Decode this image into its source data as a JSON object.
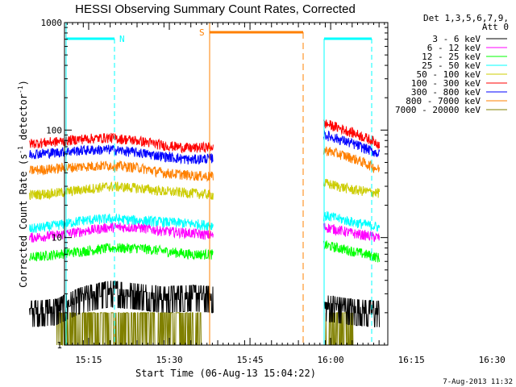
{
  "chart_data": {
    "type": "line",
    "title": "HESSI Observing Summary Count Rates, Corrected",
    "xlabel": "Start Time (06-Aug-13 15:04:22)",
    "ylabel": "Corrected Count Rate (s",
    "ylabel_sup1": "-1",
    "ylabel_mid": " detector",
    "ylabel_sup2": "-1",
    "ylabel_end": ")",
    "yscale": "log",
    "ylim": [
      1,
      1000
    ],
    "y_ticks": [
      {
        "value": 1,
        "label": "1"
      },
      {
        "value": 10,
        "label": "10"
      },
      {
        "value": 100,
        "label": "100"
      },
      {
        "value": 1000,
        "label": "1000"
      }
    ],
    "x_range_min": [
      0,
      65
    ],
    "x_ticks": [
      {
        "min": 11,
        "label": "15:15"
      },
      {
        "min": 26,
        "label": "15:30"
      },
      {
        "min": 41,
        "label": "15:45"
      },
      {
        "min": 56,
        "label": "16:00"
      },
      {
        "min": 71,
        "label": "16:15"
      },
      {
        "min": 86,
        "label": "16:30"
      }
    ],
    "legend": {
      "header_line1": "Det 1,3,5,6,7,9,",
      "header_line2": "Att 0",
      "placement": "right"
    },
    "series": [
      {
        "name": "3 - 6 keV",
        "color": "#000000",
        "values": [
          [
            0,
            2.2
          ],
          [
            5,
            2.3
          ],
          [
            10,
            3.0
          ],
          [
            15,
            3.4
          ],
          [
            20,
            3.2
          ],
          [
            25,
            3.0
          ],
          [
            30,
            3.1
          ],
          [
            34,
            3.0
          ],
          [
            55,
            2.5
          ],
          [
            60,
            2.3
          ],
          [
            65,
            2.2
          ]
        ]
      },
      {
        "name": "6 - 12 keV",
        "color": "#ff00ff",
        "values": [
          [
            0,
            10
          ],
          [
            5,
            10.5
          ],
          [
            10,
            11.5
          ],
          [
            15,
            12.5
          ],
          [
            20,
            12.5
          ],
          [
            25,
            11.5
          ],
          [
            30,
            11
          ],
          [
            34,
            10.5
          ],
          [
            55,
            12.5
          ],
          [
            60,
            11
          ],
          [
            65,
            10
          ]
        ]
      },
      {
        "name": "12 - 25 keV",
        "color": "#00ff00",
        "values": [
          [
            0,
            6.5
          ],
          [
            5,
            7
          ],
          [
            10,
            7.5
          ],
          [
            15,
            8
          ],
          [
            20,
            8
          ],
          [
            25,
            7.5
          ],
          [
            30,
            7
          ],
          [
            34,
            7
          ],
          [
            55,
            8.5
          ],
          [
            60,
            7.5
          ],
          [
            65,
            6.5
          ]
        ]
      },
      {
        "name": "25 - 50 keV",
        "color": "#00ffff",
        "values": [
          [
            0,
            12
          ],
          [
            5,
            13
          ],
          [
            10,
            14.5
          ],
          [
            15,
            15
          ],
          [
            20,
            14.5
          ],
          [
            25,
            14
          ],
          [
            30,
            13.5
          ],
          [
            34,
            13
          ],
          [
            55,
            16
          ],
          [
            60,
            14
          ],
          [
            65,
            12.5
          ]
        ]
      },
      {
        "name": "50 - 100 keV",
        "color": "#cccc00",
        "values": [
          [
            0,
            25
          ],
          [
            5,
            26
          ],
          [
            10,
            28
          ],
          [
            15,
            30
          ],
          [
            20,
            29
          ],
          [
            25,
            27
          ],
          [
            30,
            26
          ],
          [
            34,
            25
          ],
          [
            55,
            32
          ],
          [
            60,
            28
          ],
          [
            65,
            26
          ]
        ]
      },
      {
        "name": "100 - 300 keV",
        "color": "#ff0000",
        "values": [
          [
            0,
            75
          ],
          [
            5,
            78
          ],
          [
            10,
            83
          ],
          [
            15,
            85
          ],
          [
            20,
            80
          ],
          [
            25,
            72
          ],
          [
            30,
            68
          ],
          [
            34,
            70
          ],
          [
            55,
            115
          ],
          [
            60,
            95
          ],
          [
            65,
            75
          ]
        ]
      },
      {
        "name": "300 - 800 keV",
        "color": "#0000ff",
        "values": [
          [
            0,
            60
          ],
          [
            5,
            62
          ],
          [
            10,
            65
          ],
          [
            15,
            66
          ],
          [
            20,
            62
          ],
          [
            25,
            57
          ],
          [
            30,
            53
          ],
          [
            34,
            55
          ],
          [
            55,
            90
          ],
          [
            60,
            75
          ],
          [
            65,
            60
          ]
        ]
      },
      {
        "name": "800 - 7000 keV",
        "color": "#ff8000",
        "values": [
          [
            0,
            42
          ],
          [
            5,
            44
          ],
          [
            10,
            46
          ],
          [
            15,
            47
          ],
          [
            20,
            45
          ],
          [
            25,
            40
          ],
          [
            30,
            38
          ],
          [
            34,
            37
          ],
          [
            55,
            65
          ],
          [
            60,
            55
          ],
          [
            65,
            43
          ]
        ]
      },
      {
        "name": "7000 - 20000 keV",
        "color": "#808000",
        "values": [
          [
            5,
            1.2
          ],
          [
            10,
            1.6
          ],
          [
            15,
            1.8
          ],
          [
            20,
            1.7
          ],
          [
            25,
            1.5
          ],
          [
            30,
            1.3
          ],
          [
            55,
            1.5
          ],
          [
            60,
            1.2
          ]
        ]
      }
    ],
    "markers": [
      {
        "label": "N",
        "color": "#00ffff"
      },
      {
        "label": "S",
        "color": "#ff8000"
      }
    ],
    "footer": "7-Aug-2013 11:32"
  }
}
